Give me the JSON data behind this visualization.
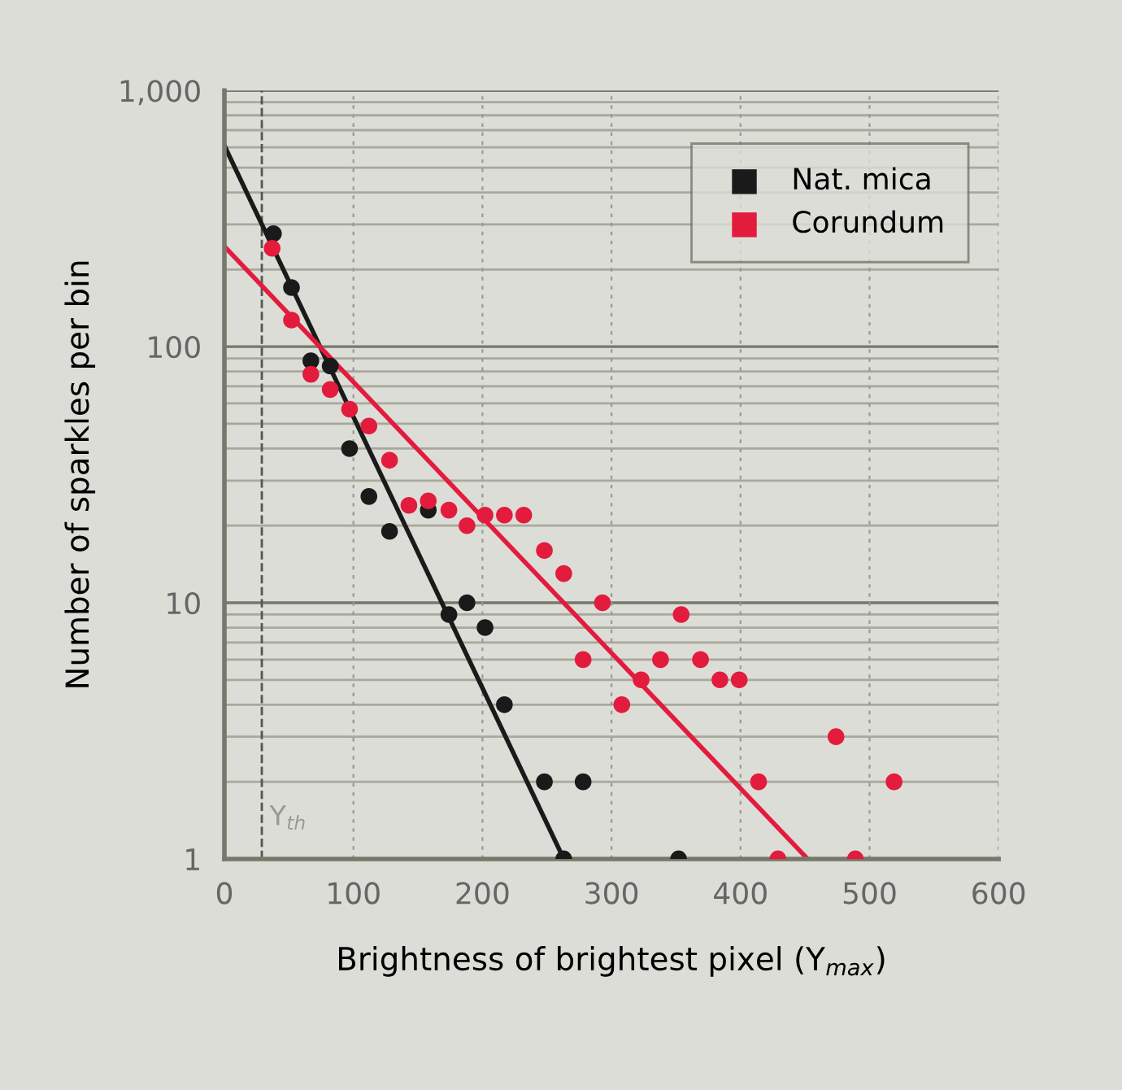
{
  "chart_data": {
    "type": "scatter",
    "xlabel": "Brightness of brightest pixel (Y$_{max}$)",
    "ylabel": "Number of sparkles per bin",
    "xlim": [
      0,
      600
    ],
    "xticks": [
      0,
      100,
      200,
      300,
      400,
      500,
      600
    ],
    "ylim": [
      1,
      1000
    ],
    "yticks": [
      1,
      10,
      100,
      {
        "value": 1000,
        "label": "1,000"
      }
    ],
    "log": "y",
    "grid": true,
    "legend": "top right",
    "ref_lines": [
      {
        "axis": "x",
        "value": 29,
        "label": "Y$_{th}$",
        "color": "#555555",
        "line_style": "dashed"
      }
    ],
    "series": [
      {
        "name": "Nat. mica",
        "color": "#1a1a1a",
        "marker": "circle",
        "x": [
          38,
          52,
          67,
          82,
          97,
          112,
          128,
          158,
          174,
          188,
          202,
          217,
          248,
          278,
          263,
          352
        ],
        "values": [
          276,
          170,
          88,
          84,
          40,
          26,
          19,
          23,
          9,
          10,
          8,
          4,
          2,
          2,
          1,
          1
        ]
      },
      {
        "name": "Corundum",
        "color": "#e31b3c",
        "marker": "circle",
        "x": [
          37,
          52,
          67,
          82,
          97,
          112,
          128,
          143,
          158,
          174,
          188,
          202,
          217,
          232,
          248,
          263,
          293,
          278,
          308,
          323,
          338,
          354,
          369,
          384,
          399,
          414,
          429,
          474,
          489,
          519
        ],
        "values": [
          242,
          127,
          78,
          68,
          57,
          49,
          36,
          24,
          25,
          23,
          20,
          22,
          22,
          22,
          16,
          13,
          10,
          6,
          4,
          5,
          6,
          9,
          6,
          5,
          5,
          2,
          1,
          3,
          1,
          2
        ]
      },
      {
        "type": "line",
        "color": "#1a1a1a",
        "marker": "none",
        "x": [
          0,
          263
        ],
        "values": [
          609,
          1
        ]
      },
      {
        "type": "line",
        "color": "#e31b3c",
        "marker": "none",
        "x": [
          0,
          452
        ],
        "values": [
          246,
          1
        ]
      }
    ]
  }
}
